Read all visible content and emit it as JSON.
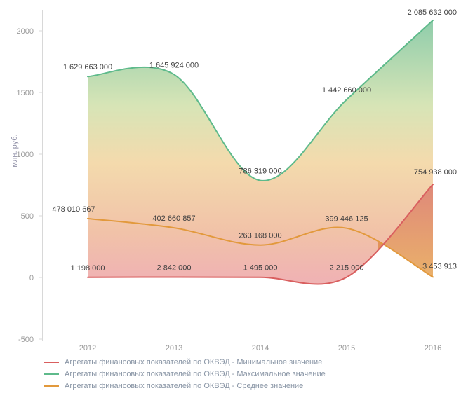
{
  "chart_data": {
    "type": "area",
    "title": "",
    "ylabel": "млн. руб.",
    "x_categories": [
      "2012",
      "2013",
      "2014",
      "2015",
      "2016"
    ],
    "yticks": [
      -500,
      0,
      500,
      1000,
      1500,
      2000
    ],
    "ylim": [
      -500,
      2000
    ],
    "grid": false,
    "legend_position": "bottom-left",
    "axis_unit_divisor": 1000000,
    "series": [
      {
        "key": "min",
        "name": "Агрегаты финансовых показателей по ОКВЭД - Минимальное значение",
        "color": "#d95f5f",
        "values": [
          1198000,
          2842000,
          1495000,
          2215000,
          754938000
        ],
        "point_labels": [
          "1 198 000",
          "2 842 000",
          "1 495 000",
          "2 215 000",
          "754 938 000"
        ]
      },
      {
        "key": "max",
        "name": "Агрегаты финансовых показателей по ОКВЭД - Максимальное значение",
        "color": "#5eba8b",
        "values": [
          1629663000,
          1645924000,
          786319000,
          1442660000,
          2085632000
        ],
        "point_labels": [
          "1 629 663 000",
          "1 645 924 000",
          "786 319 000",
          "1 442 660 000",
          "2 085 632 000"
        ]
      },
      {
        "key": "avg",
        "name": "Агрегаты финансовых показателей по ОКВЭД - Среднее значение",
        "color": "#e2993c",
        "values": [
          478010667,
          402660857,
          263168000,
          399446125,
          3453913
        ],
        "point_labels": [
          "478 010 667",
          "402 660 857",
          "263 168 000",
          "399 446 125",
          "3 453 913"
        ]
      }
    ],
    "gradients": {
      "band_max_min": [
        "#44ab73",
        "#bcd386",
        "#ecc276",
        "#e89a6e",
        "#e58080"
      ],
      "band_avg_min": [
        "#d4604e",
        "#e39738"
      ]
    },
    "axis_color": "#d8d8d8"
  }
}
